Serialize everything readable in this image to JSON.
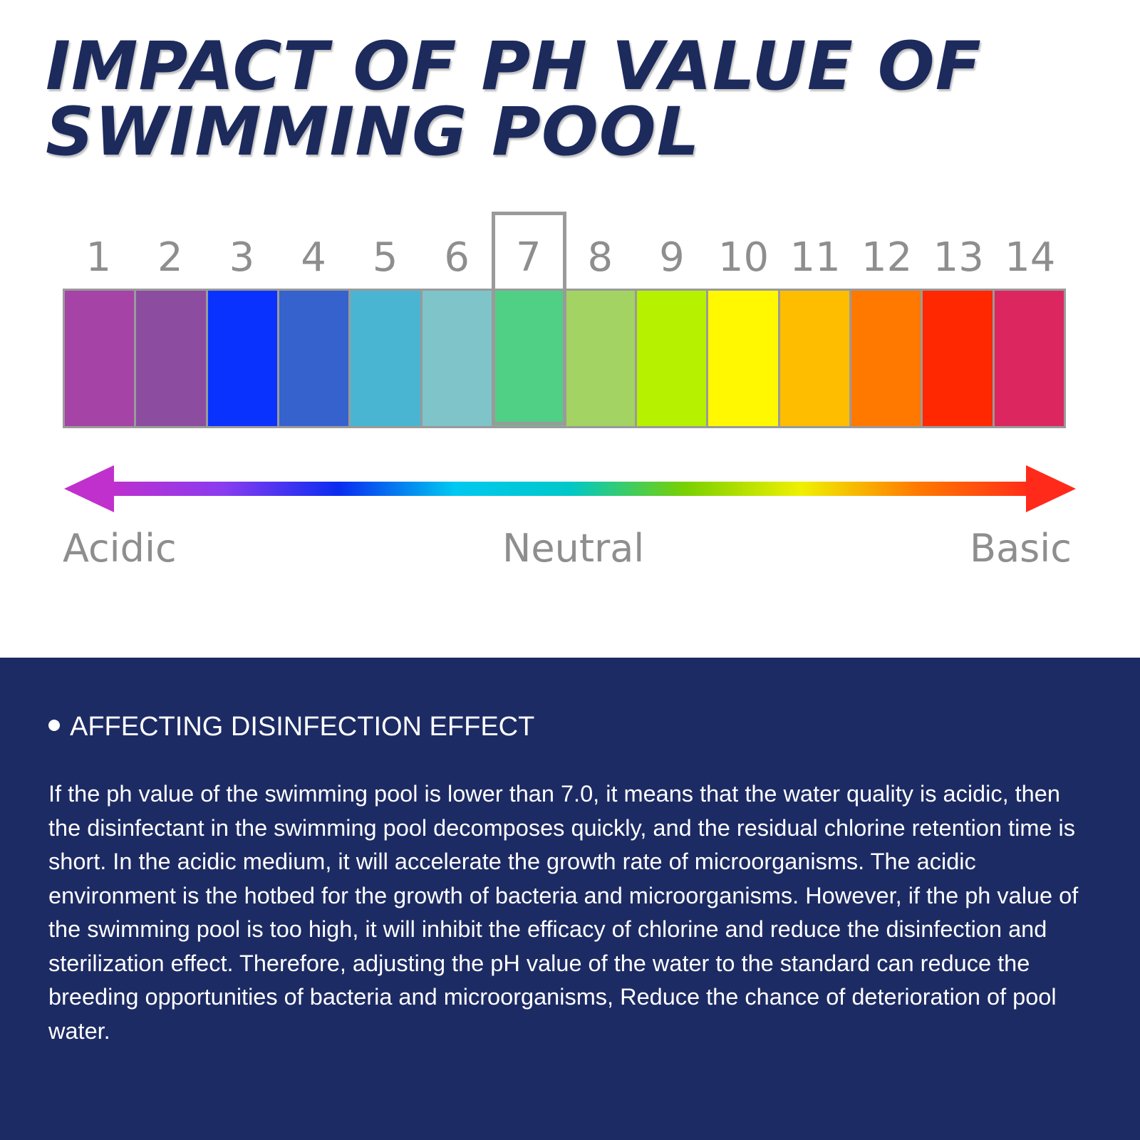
{
  "title": {
    "line1": "IMPACT OF PH VALUE OF",
    "line2": "SWIMMING POOL"
  },
  "ph_scale": {
    "numbers": [
      "1",
      "2",
      "3",
      "4",
      "5",
      "6",
      "7",
      "8",
      "9",
      "10",
      "11",
      "12",
      "13",
      "14"
    ],
    "colors": [
      "#a543a6",
      "#8c4ca0",
      "#0a32ff",
      "#3562cc",
      "#4ab5d3",
      "#7fc4c8",
      "#4fd084",
      "#a2d363",
      "#b6f200",
      "#fff800",
      "#ffbd00",
      "#ff7800",
      "#ff2800",
      "#dc2660"
    ],
    "highlighted_value": "7"
  },
  "arrow": {
    "gradient_colors": [
      "#c030cc",
      "#8a3cf0",
      "#0a2cf0",
      "#00c8f0",
      "#00c8c8",
      "#7ad000",
      "#f0f000",
      "#ff7a00",
      "#ff2a1a"
    ]
  },
  "labels": {
    "acidic": "Acidic",
    "neutral": "Neutral",
    "basic": "Basic"
  },
  "section": {
    "heading": "AFFECTING DISINFECTION EFFECT",
    "body": "If the ph value of the swimming pool is lower than 7.0, it means that the water quality is acidic, then the disinfectant in the swimming pool decomposes quickly, and the residual chlorine retention time is short. In the acidic medium, it will accelerate the growth rate of microorganisms. The acidic environment is the hotbed for the growth of bacteria and microorganisms. However, if the ph value of the swimming pool is too high, it will inhibit the efficacy of chlorine and reduce the disinfection and sterilization effect. Therefore, adjusting the pH value of the water to the standard can reduce the breeding opportunities of bacteria and microorganisms, Reduce the chance of deterioration of pool water."
  },
  "theme": {
    "navy": "#1d2b64",
    "title_color": "#1c2a5c",
    "gray": "#8e8e8e"
  }
}
